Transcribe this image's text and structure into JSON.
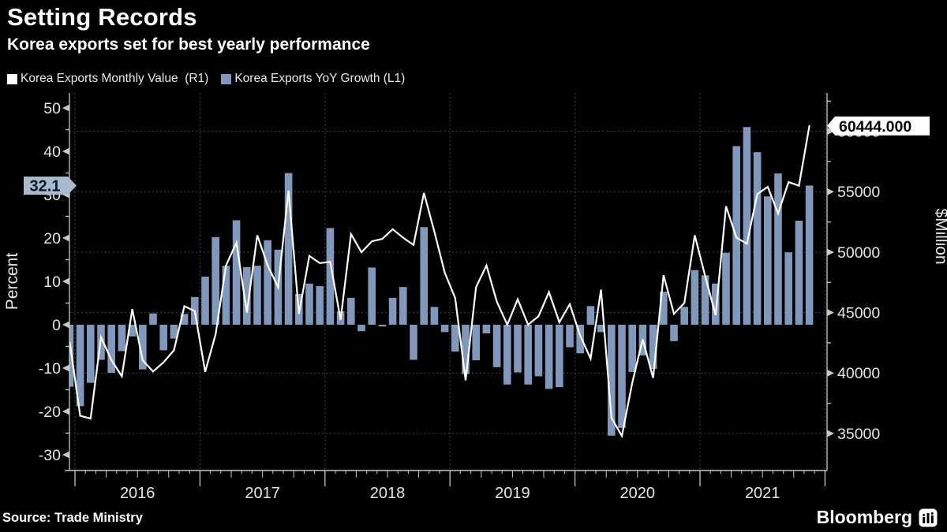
{
  "title": "Setting Records",
  "subtitle": "Korea exports set for best yearly performance",
  "legend": {
    "items": [
      {
        "label": "Korea Exports Monthly Value  (R1)",
        "color": "#ffffff"
      },
      {
        "label": "Korea Exports YoY Growth (L1)",
        "color": "#8098bc"
      }
    ]
  },
  "badges": {
    "left": {
      "value": "32.1",
      "bg": "#a8bacd",
      "text_color": "#0d1826"
    },
    "right": {
      "value": "60444.000",
      "bg": "#ffffff",
      "text_color": "#000000"
    }
  },
  "axes": {
    "left": {
      "title": "Percent",
      "tick_labels": [
        "50",
        "40",
        "30",
        "20",
        "10",
        "0",
        "-10",
        "-20",
        "-30"
      ],
      "ticks": [
        50,
        40,
        30,
        20,
        10,
        0,
        -10,
        -20,
        -30
      ],
      "minor_ticks": [
        45,
        35,
        25,
        15,
        5,
        -5,
        -15,
        -25
      ],
      "range": [
        -33.6,
        53.5
      ]
    },
    "right": {
      "title": "$Million",
      "tick_labels": [
        "60000",
        "55000",
        "50000",
        "45000",
        "40000",
        "35000"
      ],
      "ticks": [
        60000,
        55000,
        50000,
        45000,
        40000,
        35000
      ],
      "minor_ticks": [
        62500,
        57500,
        52500,
        47500,
        42500,
        37500
      ],
      "range": [
        31900,
        63100
      ]
    },
    "x": {
      "year_labels": [
        "2016",
        "2017",
        "2018",
        "2019",
        "2020",
        "2021"
      ]
    }
  },
  "source": "Source: Trade Ministry",
  "brand": {
    "name": "Bloomberg"
  },
  "colors": {
    "background": "#000000",
    "bar": "#8098bc",
    "line": "#ffffff",
    "grid": "#454545",
    "axis": "#c8c8c8",
    "tick_text": "#e6e6e6"
  },
  "chart_data": {
    "type": "combo-bar-line",
    "title": "Setting Records",
    "subtitle": "Korea exports set for best yearly performance",
    "x_start": "2015-12",
    "x_end": "2021-11",
    "grid": "dashed, horizontal at right-axis ticks, vertical at year boundaries",
    "legend_position": "top-left",
    "months": [
      "2015-12",
      "2016-01",
      "2016-02",
      "2016-03",
      "2016-04",
      "2016-05",
      "2016-06",
      "2016-07",
      "2016-08",
      "2016-09",
      "2016-10",
      "2016-11",
      "2016-12",
      "2017-01",
      "2017-02",
      "2017-03",
      "2017-04",
      "2017-05",
      "2017-06",
      "2017-07",
      "2017-08",
      "2017-09",
      "2017-10",
      "2017-11",
      "2017-12",
      "2018-01",
      "2018-02",
      "2018-03",
      "2018-04",
      "2018-05",
      "2018-06",
      "2018-07",
      "2018-08",
      "2018-09",
      "2018-10",
      "2018-11",
      "2018-12",
      "2019-01",
      "2019-02",
      "2019-03",
      "2019-04",
      "2019-05",
      "2019-06",
      "2019-07",
      "2019-08",
      "2019-09",
      "2019-10",
      "2019-11",
      "2019-12",
      "2020-01",
      "2020-02",
      "2020-03",
      "2020-04",
      "2020-05",
      "2020-06",
      "2020-07",
      "2020-08",
      "2020-09",
      "2020-10",
      "2020-11",
      "2020-12",
      "2021-01",
      "2021-02",
      "2021-03",
      "2021-04",
      "2021-05",
      "2021-06",
      "2021-07",
      "2021-08",
      "2021-09",
      "2021-10",
      "2021-11"
    ],
    "series": [
      {
        "name": "Korea Exports YoY Growth (L1)",
        "type": "bar",
        "axis": "left",
        "unit": "Percent",
        "values": [
          -14.3,
          -18.8,
          -13.4,
          -8.1,
          -11.1,
          -6.1,
          -2.7,
          -10.3,
          2.6,
          -5.9,
          -3.2,
          2.5,
          6.4,
          11.1,
          20.2,
          13.6,
          24.1,
          13.3,
          13.6,
          19.5,
          17.3,
          35.0,
          7.1,
          9.5,
          8.9,
          22.3,
          3.1,
          6.2,
          -1.5,
          13.2,
          -0.4,
          6.2,
          8.7,
          -8.1,
          22.5,
          4.1,
          -1.7,
          -6.2,
          -11.4,
          -8.2,
          -2.0,
          -9.8,
          -13.8,
          -11.0,
          -13.8,
          -11.9,
          -14.8,
          -14.4,
          -5.2,
          -6.6,
          4.3,
          -1.7,
          -25.6,
          -23.8,
          -10.9,
          -7.1,
          -10.2,
          7.6,
          -3.8,
          4.1,
          12.6,
          11.4,
          9.5,
          16.6,
          41.2,
          45.6,
          39.8,
          29.6,
          34.9,
          16.7,
          24.0,
          32.1
        ],
        "last_value_label": "32.1"
      },
      {
        "name": "Korea Exports Monthly Value  (R1)",
        "type": "line",
        "axis": "right",
        "unit": "$Million",
        "values": [
          42560,
          36470,
          36230,
          42970,
          41070,
          39730,
          45290,
          41050,
          40130,
          40890,
          41880,
          45530,
          45120,
          40100,
          43200,
          48900,
          50800,
          45000,
          51400,
          48900,
          47100,
          55100,
          44900,
          49700,
          49100,
          49200,
          44400,
          51500,
          50000,
          50900,
          51100,
          51900,
          51200,
          50600,
          54900,
          51700,
          48300,
          46200,
          39400,
          47100,
          48900,
          45900,
          44000,
          46100,
          44000,
          44700,
          46700,
          44200,
          45700,
          43100,
          41200,
          46900,
          36300,
          34800,
          39200,
          42800,
          39600,
          48100,
          44900,
          45800,
          51400,
          48000,
          44800,
          53800,
          51200,
          50700,
          54800,
          55400,
          53200,
          55800,
          55500,
          60444
        ],
        "last_value_label": "60444.000"
      }
    ]
  }
}
